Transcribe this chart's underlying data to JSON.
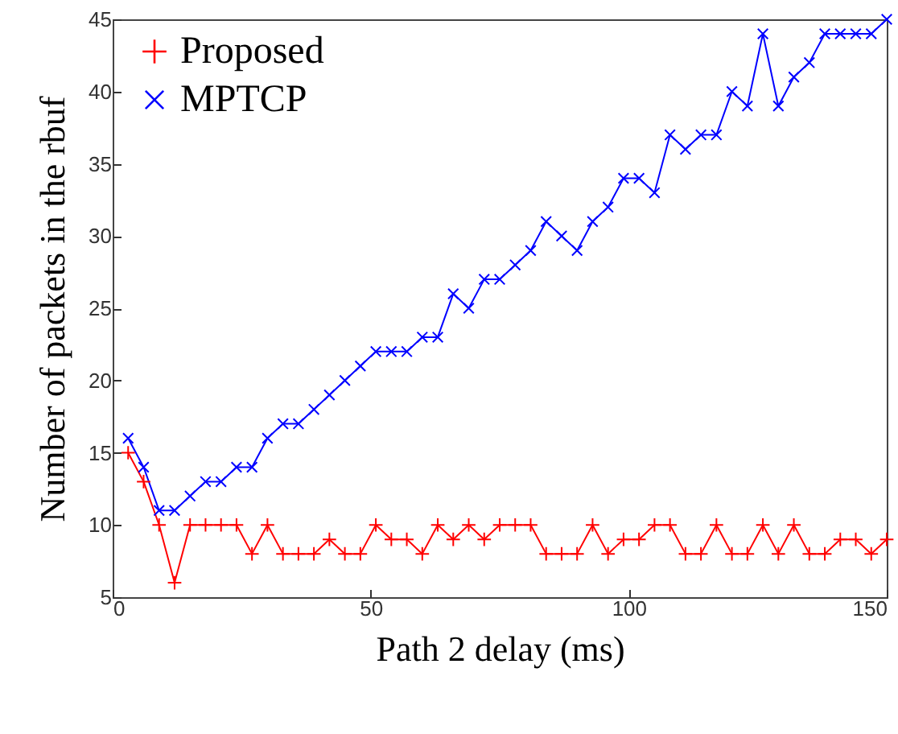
{
  "chart_data": {
    "type": "line",
    "xlabel": "Path 2 delay (ms)",
    "ylabel": "Number of packets in the rbuf",
    "x": [
      3,
      6,
      9,
      12,
      15,
      18,
      21,
      24,
      27,
      30,
      33,
      36,
      39,
      42,
      45,
      48,
      51,
      54,
      57,
      60,
      63,
      66,
      69,
      72,
      75,
      78,
      81,
      84,
      87,
      90,
      93,
      96,
      99,
      102,
      105,
      108,
      111,
      114,
      117,
      120,
      123,
      126,
      129,
      132,
      135,
      138,
      141,
      144,
      147,
      150
    ],
    "series": [
      {
        "name": "Proposed",
        "color": "#ff0000",
        "marker": "cross",
        "values": [
          15,
          13,
          10,
          6,
          10,
          10,
          10,
          10,
          8,
          10,
          8,
          8,
          8,
          9,
          8,
          8,
          10,
          9,
          9,
          8,
          10,
          9,
          10,
          9,
          10,
          10,
          10,
          8,
          8,
          8,
          10,
          8,
          9,
          9,
          10,
          10,
          8,
          8,
          10,
          8,
          8,
          10,
          8,
          10,
          8,
          8,
          9,
          9,
          8,
          9
        ]
      },
      {
        "name": "MPTCP",
        "color": "#0000ff",
        "marker": "x",
        "values": [
          16,
          14,
          11,
          11,
          12,
          13,
          13,
          14,
          14,
          16,
          17,
          17,
          18,
          19,
          20,
          21,
          22,
          22,
          22,
          23,
          23,
          26,
          25,
          27,
          27,
          28,
          29,
          31,
          30,
          29,
          31,
          32,
          34,
          34,
          33,
          37,
          36,
          37,
          37,
          40,
          39,
          44,
          39,
          41,
          42,
          44,
          44,
          44,
          44,
          45
        ]
      }
    ],
    "xlim": [
      0,
      150
    ],
    "xticks": [
      0,
      50,
      100,
      150
    ],
    "ylim": [
      5,
      45
    ],
    "yticks": [
      5,
      10,
      15,
      20,
      25,
      30,
      35,
      40,
      45
    ],
    "grid": false,
    "legend": "top left"
  }
}
